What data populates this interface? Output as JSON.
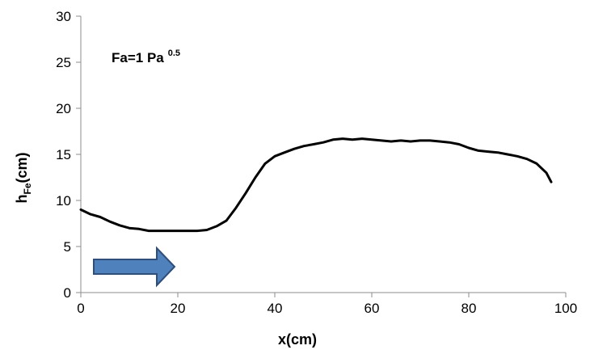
{
  "chart_data": {
    "type": "line",
    "title": "",
    "xlabel": "x(cm)",
    "ylabel": {
      "main": "h",
      "sub": "Fe",
      "tail": "(cm)"
    },
    "annotation": {
      "main": "Fa=1 Pa",
      "sup": "0.5"
    },
    "xlim": [
      0,
      100
    ],
    "ylim": [
      0,
      30
    ],
    "xticks": [
      "0",
      "20",
      "40",
      "60",
      "80",
      "100"
    ],
    "yticks": [
      "0",
      "5",
      "10",
      "15",
      "20",
      "25",
      "30"
    ],
    "grid": false,
    "legend": "none",
    "line_color": "#000000",
    "arrow_color": "#4f81bd",
    "arrow_edge_color": "#2f4e7a",
    "arrow_direction": "right",
    "series": [
      {
        "x": [
          0,
          2,
          4,
          6,
          8,
          10,
          12,
          14,
          16,
          18,
          20,
          22,
          24,
          26,
          28,
          30,
          32,
          34,
          36,
          38,
          40,
          42,
          44,
          46,
          48,
          50,
          52,
          54,
          56,
          58,
          60,
          62,
          64,
          66,
          68,
          70,
          72,
          74,
          76,
          78,
          80,
          82,
          84,
          86,
          88,
          90,
          92,
          94,
          96,
          97
        ],
        "y": [
          9.0,
          8.5,
          8.2,
          7.7,
          7.3,
          7.0,
          6.9,
          6.7,
          6.7,
          6.7,
          6.7,
          6.7,
          6.7,
          6.8,
          7.2,
          7.8,
          9.2,
          10.8,
          12.5,
          14.0,
          14.8,
          15.2,
          15.6,
          15.9,
          16.1,
          16.3,
          16.6,
          16.7,
          16.6,
          16.7,
          16.6,
          16.5,
          16.4,
          16.5,
          16.4,
          16.5,
          16.5,
          16.4,
          16.3,
          16.1,
          15.7,
          15.4,
          15.3,
          15.2,
          15.0,
          14.8,
          14.5,
          14.0,
          13.0,
          12.0
        ]
      }
    ]
  }
}
